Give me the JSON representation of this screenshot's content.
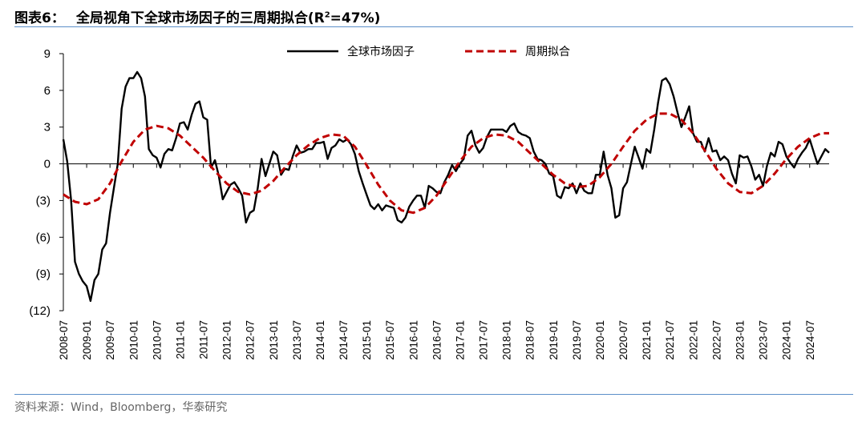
{
  "header": {
    "label": "图表6：",
    "title_main": "全局视角下全球市场因子的三周期拟合(R",
    "title_sup": "2",
    "title_tail": "=47%)"
  },
  "source": "资料来源：Wind，Bloomberg，华泰研究",
  "colors": {
    "factor": "#000000",
    "fit": "#c00000",
    "rule": "#5b8fc9"
  },
  "chart_data": {
    "type": "line",
    "title": "全局视角下全球市场因子的三周期拟合(R²=47%)",
    "xlabel": "",
    "ylabel": "",
    "ylim": [
      -12,
      9
    ],
    "yticks": [
      9,
      6,
      3,
      0,
      -3,
      -6,
      -9,
      -12
    ],
    "ytick_labels": [
      "9",
      "6",
      "3",
      "0",
      "(3)",
      "(6)",
      "(9)",
      "(12)"
    ],
    "xlim": [
      "2008-07",
      "2024-12"
    ],
    "xtick_labels": [
      "2008-07",
      "2009-01",
      "2009-07",
      "2010-01",
      "2010-07",
      "2011-01",
      "2011-07",
      "2012-01",
      "2012-07",
      "2013-01",
      "2013-07",
      "2014-01",
      "2014-07",
      "2015-01",
      "2015-07",
      "2016-01",
      "2016-07",
      "2017-01",
      "2017-07",
      "2018-01",
      "2018-07",
      "2019-01",
      "2019-07",
      "2020-01",
      "2020-07",
      "2021-01",
      "2021-07",
      "2022-01",
      "2022-07",
      "2023-01",
      "2023-07",
      "2024-01",
      "2024-07"
    ],
    "legend_position": "top-center",
    "grid": false,
    "series": [
      {
        "name": "全球市场因子",
        "style": "solid",
        "points": [
          [
            "2008-07",
            2.0
          ],
          [
            "2008-08",
            0.2
          ],
          [
            "2008-09",
            -3.0
          ],
          [
            "2008-10",
            -8.0
          ],
          [
            "2008-11",
            -9.0
          ],
          [
            "2008-12",
            -9.6
          ],
          [
            "2009-01",
            -10.0
          ],
          [
            "2009-02",
            -11.2
          ],
          [
            "2009-03",
            -9.5
          ],
          [
            "2009-04",
            -9.0
          ],
          [
            "2009-05",
            -7.0
          ],
          [
            "2009-06",
            -6.5
          ],
          [
            "2009-07",
            -4.0
          ],
          [
            "2009-08",
            -2.0
          ],
          [
            "2009-09",
            0.0
          ],
          [
            "2009-10",
            4.5
          ],
          [
            "2009-11",
            6.3
          ],
          [
            "2009-12",
            7.0
          ],
          [
            "2010-01",
            7.0
          ],
          [
            "2010-02",
            7.5
          ],
          [
            "2010-03",
            7.0
          ],
          [
            "2010-04",
            5.5
          ],
          [
            "2010-05",
            1.2
          ],
          [
            "2010-06",
            0.7
          ],
          [
            "2010-07",
            0.5
          ],
          [
            "2010-08",
            -0.3
          ],
          [
            "2010-09",
            0.8
          ],
          [
            "2010-10",
            1.2
          ],
          [
            "2010-11",
            1.1
          ],
          [
            "2010-12",
            2.1
          ],
          [
            "2011-01",
            3.3
          ],
          [
            "2011-02",
            3.4
          ],
          [
            "2011-03",
            2.8
          ],
          [
            "2011-04",
            4.0
          ],
          [
            "2011-05",
            4.9
          ],
          [
            "2011-06",
            5.1
          ],
          [
            "2011-07",
            3.8
          ],
          [
            "2011-08",
            3.6
          ],
          [
            "2011-09",
            -0.3
          ],
          [
            "2011-10",
            0.3
          ],
          [
            "2011-11",
            -1.0
          ],
          [
            "2011-12",
            -2.9
          ],
          [
            "2012-01",
            -2.3
          ],
          [
            "2012-02",
            -1.7
          ],
          [
            "2012-03",
            -1.5
          ],
          [
            "2012-04",
            -2.0
          ],
          [
            "2012-05",
            -2.6
          ],
          [
            "2012-06",
            -4.8
          ],
          [
            "2012-07",
            -4.0
          ],
          [
            "2012-08",
            -3.8
          ],
          [
            "2012-09",
            -2.0
          ],
          [
            "2012-10",
            0.4
          ],
          [
            "2012-11",
            -1.0
          ],
          [
            "2012-12",
            0.0
          ],
          [
            "2013-01",
            1.0
          ],
          [
            "2013-02",
            0.7
          ],
          [
            "2013-03",
            -0.9
          ],
          [
            "2013-04",
            -0.4
          ],
          [
            "2013-05",
            -0.5
          ],
          [
            "2013-06",
            0.6
          ],
          [
            "2013-07",
            1.5
          ],
          [
            "2013-08",
            0.9
          ],
          [
            "2013-09",
            1.0
          ],
          [
            "2013-10",
            1.2
          ],
          [
            "2013-11",
            1.2
          ],
          [
            "2013-12",
            1.7
          ],
          [
            "2014-01",
            1.7
          ],
          [
            "2014-02",
            1.8
          ],
          [
            "2014-03",
            0.4
          ],
          [
            "2014-04",
            1.3
          ],
          [
            "2014-05",
            1.5
          ],
          [
            "2014-06",
            2.0
          ],
          [
            "2014-07",
            1.8
          ],
          [
            "2014-08",
            2.0
          ],
          [
            "2014-09",
            1.6
          ],
          [
            "2014-10",
            0.8
          ],
          [
            "2014-11",
            -0.6
          ],
          [
            "2014-12",
            -1.6
          ],
          [
            "2015-01",
            -2.5
          ],
          [
            "2015-02",
            -3.4
          ],
          [
            "2015-03",
            -3.7
          ],
          [
            "2015-04",
            -3.3
          ],
          [
            "2015-05",
            -3.8
          ],
          [
            "2015-06",
            -3.4
          ],
          [
            "2015-07",
            -3.5
          ],
          [
            "2015-08",
            -3.6
          ],
          [
            "2015-09",
            -4.6
          ],
          [
            "2015-10",
            -4.8
          ],
          [
            "2015-11",
            -4.4
          ],
          [
            "2015-12",
            -3.5
          ],
          [
            "2016-01",
            -3.0
          ],
          [
            "2016-02",
            -2.6
          ],
          [
            "2016-03",
            -2.6
          ],
          [
            "2016-04",
            -3.6
          ],
          [
            "2016-05",
            -1.8
          ],
          [
            "2016-06",
            -2.0
          ],
          [
            "2016-07",
            -2.3
          ],
          [
            "2016-08",
            -2.4
          ],
          [
            "2016-09",
            -1.5
          ],
          [
            "2016-10",
            -0.9
          ],
          [
            "2016-11",
            -0.1
          ],
          [
            "2016-12",
            -0.6
          ],
          [
            "2017-01",
            0.0
          ],
          [
            "2017-02",
            0.4
          ],
          [
            "2017-03",
            2.3
          ],
          [
            "2017-04",
            2.7
          ],
          [
            "2017-05",
            1.5
          ],
          [
            "2017-06",
            0.9
          ],
          [
            "2017-07",
            1.3
          ],
          [
            "2017-08",
            2.2
          ],
          [
            "2017-09",
            2.8
          ],
          [
            "2017-10",
            2.8
          ],
          [
            "2017-11",
            2.8
          ],
          [
            "2017-12",
            2.8
          ],
          [
            "2018-01",
            2.6
          ],
          [
            "2018-02",
            3.1
          ],
          [
            "2018-03",
            3.3
          ],
          [
            "2018-04",
            2.6
          ],
          [
            "2018-05",
            2.4
          ],
          [
            "2018-06",
            2.3
          ],
          [
            "2018-07",
            2.1
          ],
          [
            "2018-08",
            1.0
          ],
          [
            "2018-09",
            0.4
          ],
          [
            "2018-10",
            0.3
          ],
          [
            "2018-11",
            0.0
          ],
          [
            "2018-12",
            -0.8
          ],
          [
            "2019-01",
            -1.0
          ],
          [
            "2019-02",
            -2.6
          ],
          [
            "2019-03",
            -2.8
          ],
          [
            "2019-04",
            -1.9
          ],
          [
            "2019-05",
            -2.0
          ],
          [
            "2019-06",
            -1.6
          ],
          [
            "2019-07",
            -2.4
          ],
          [
            "2019-08",
            -1.6
          ],
          [
            "2019-09",
            -2.2
          ],
          [
            "2019-10",
            -2.4
          ],
          [
            "2019-11",
            -2.4
          ],
          [
            "2019-12",
            -0.9
          ],
          [
            "2020-01",
            -0.9
          ],
          [
            "2020-02",
            1.0
          ],
          [
            "2020-03",
            -0.9
          ],
          [
            "2020-04",
            -2.0
          ],
          [
            "2020-05",
            -4.4
          ],
          [
            "2020-06",
            -4.2
          ],
          [
            "2020-07",
            -2.0
          ],
          [
            "2020-08",
            -1.5
          ],
          [
            "2020-09",
            0.0
          ],
          [
            "2020-10",
            1.4
          ],
          [
            "2020-11",
            0.5
          ],
          [
            "2020-12",
            -0.4
          ],
          [
            "2021-01",
            1.2
          ],
          [
            "2021-02",
            0.9
          ],
          [
            "2021-03",
            2.8
          ],
          [
            "2021-04",
            5.0
          ],
          [
            "2021-05",
            6.8
          ],
          [
            "2021-06",
            7.0
          ],
          [
            "2021-07",
            6.5
          ],
          [
            "2021-08",
            5.5
          ],
          [
            "2021-09",
            4.2
          ],
          [
            "2021-10",
            3.0
          ],
          [
            "2021-11",
            3.8
          ],
          [
            "2021-12",
            4.7
          ],
          [
            "2022-01",
            2.5
          ],
          [
            "2022-02",
            1.8
          ],
          [
            "2022-03",
            1.8
          ],
          [
            "2022-04",
            1.0
          ],
          [
            "2022-05",
            2.1
          ],
          [
            "2022-06",
            1.0
          ],
          [
            "2022-07",
            1.1
          ],
          [
            "2022-08",
            0.3
          ],
          [
            "2022-09",
            0.6
          ],
          [
            "2022-10",
            0.3
          ],
          [
            "2022-11",
            -0.8
          ],
          [
            "2022-12",
            -1.6
          ],
          [
            "2023-01",
            0.7
          ],
          [
            "2023-02",
            0.5
          ],
          [
            "2023-03",
            0.6
          ],
          [
            "2023-04",
            -0.2
          ],
          [
            "2023-05",
            -1.3
          ],
          [
            "2023-06",
            -0.9
          ],
          [
            "2023-07",
            -1.8
          ],
          [
            "2023-08",
            -0.2
          ],
          [
            "2023-09",
            0.9
          ],
          [
            "2023-10",
            0.6
          ],
          [
            "2023-11",
            1.8
          ],
          [
            "2023-12",
            1.6
          ],
          [
            "2024-01",
            0.6
          ],
          [
            "2024-02",
            0.1
          ],
          [
            "2024-03",
            -0.3
          ],
          [
            "2024-04",
            0.4
          ],
          [
            "2024-05",
            0.9
          ],
          [
            "2024-06",
            1.3
          ],
          [
            "2024-07",
            2.0
          ],
          [
            "2024-08",
            1.0
          ],
          [
            "2024-09",
            0.0
          ],
          [
            "2024-10",
            0.6
          ],
          [
            "2024-11",
            1.2
          ],
          [
            "2024-12",
            0.9
          ]
        ]
      },
      {
        "name": "周期拟合",
        "style": "dashed",
        "points": [
          [
            "2008-07",
            -2.5
          ],
          [
            "2008-10",
            -3.1
          ],
          [
            "2009-01",
            -3.3
          ],
          [
            "2009-04",
            -2.9
          ],
          [
            "2009-07",
            -1.6
          ],
          [
            "2009-10",
            0.2
          ],
          [
            "2010-01",
            1.8
          ],
          [
            "2010-04",
            2.8
          ],
          [
            "2010-07",
            3.1
          ],
          [
            "2010-10",
            2.9
          ],
          [
            "2011-01",
            2.3
          ],
          [
            "2011-04",
            1.4
          ],
          [
            "2011-07",
            0.5
          ],
          [
            "2011-10",
            -0.6
          ],
          [
            "2012-01",
            -1.6
          ],
          [
            "2012-04",
            -2.3
          ],
          [
            "2012-07",
            -2.5
          ],
          [
            "2012-10",
            -2.2
          ],
          [
            "2013-01",
            -1.4
          ],
          [
            "2013-04",
            -0.3
          ],
          [
            "2013-07",
            0.7
          ],
          [
            "2013-10",
            1.5
          ],
          [
            "2014-01",
            2.1
          ],
          [
            "2014-04",
            2.4
          ],
          [
            "2014-07",
            2.3
          ],
          [
            "2014-10",
            1.4
          ],
          [
            "2015-01",
            -0.1
          ],
          [
            "2015-04",
            -1.7
          ],
          [
            "2015-07",
            -3.0
          ],
          [
            "2015-10",
            -3.8
          ],
          [
            "2016-01",
            -4.0
          ],
          [
            "2016-04",
            -3.6
          ],
          [
            "2016-07",
            -2.6
          ],
          [
            "2016-10",
            -1.2
          ],
          [
            "2017-01",
            0.2
          ],
          [
            "2017-04",
            1.4
          ],
          [
            "2017-07",
            2.1
          ],
          [
            "2017-10",
            2.4
          ],
          [
            "2018-01",
            2.3
          ],
          [
            "2018-04",
            1.8
          ],
          [
            "2018-07",
            0.9
          ],
          [
            "2018-10",
            0.0
          ],
          [
            "2019-01",
            -0.9
          ],
          [
            "2019-04",
            -1.6
          ],
          [
            "2019-07",
            -1.9
          ],
          [
            "2019-10",
            -1.8
          ],
          [
            "2020-01",
            -1.1
          ],
          [
            "2020-04",
            0.0
          ],
          [
            "2020-07",
            1.4
          ],
          [
            "2020-10",
            2.7
          ],
          [
            "2021-01",
            3.6
          ],
          [
            "2021-04",
            4.1
          ],
          [
            "2021-07",
            4.1
          ],
          [
            "2021-10",
            3.6
          ],
          [
            "2022-01",
            2.5
          ],
          [
            "2022-04",
            1.1
          ],
          [
            "2022-07",
            -0.4
          ],
          [
            "2022-10",
            -1.6
          ],
          [
            "2023-01",
            -2.3
          ],
          [
            "2023-04",
            -2.4
          ],
          [
            "2023-07",
            -1.8
          ],
          [
            "2023-10",
            -0.8
          ],
          [
            "2024-01",
            0.4
          ],
          [
            "2024-04",
            1.4
          ],
          [
            "2024-07",
            2.1
          ],
          [
            "2024-10",
            2.5
          ],
          [
            "2024-12",
            2.5
          ]
        ]
      }
    ]
  }
}
